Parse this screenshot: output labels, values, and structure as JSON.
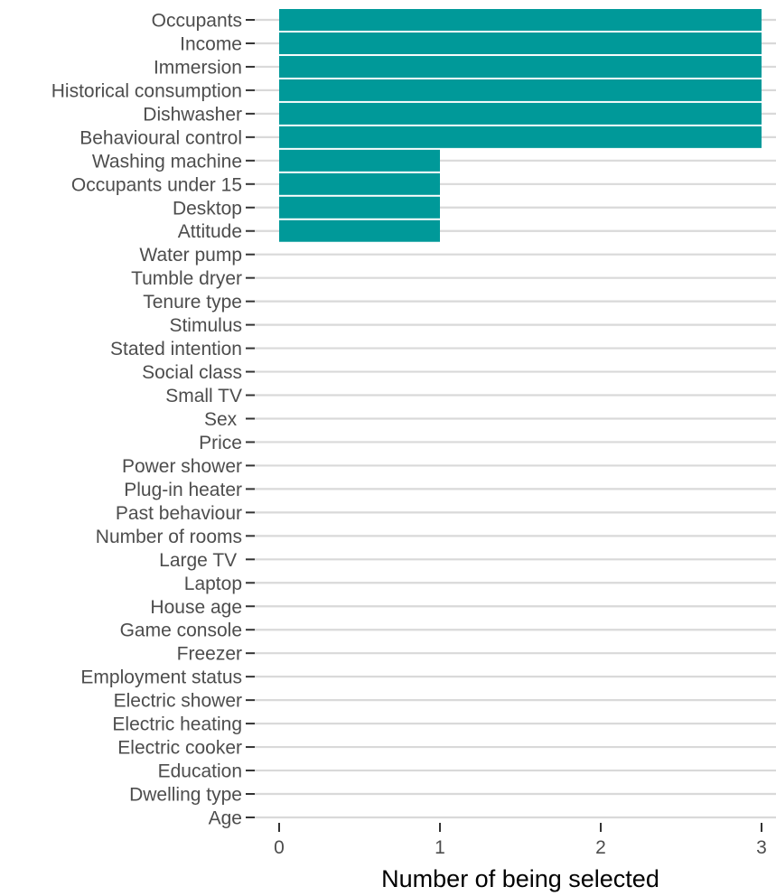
{
  "chart_data": {
    "type": "bar",
    "orientation": "horizontal",
    "categories": [
      "Occupants",
      "Income",
      "Immersion",
      "Historical consumption",
      "Dishwasher",
      "Behavioural control",
      "Washing machine",
      "Occupants under 15",
      "Desktop",
      "Attitude",
      "Water pump",
      "Tumble dryer",
      "Tenure type",
      "Stimulus",
      "Stated intention",
      "Social class",
      "Small TV",
      "Sex ",
      "Price",
      "Power shower",
      "Plug-in heater",
      "Past behaviour",
      "Number of rooms",
      "Large TV ",
      "Laptop",
      "House age",
      "Game console",
      "Freezer",
      "Employment status",
      "Electric shower",
      "Electric heating",
      "Electric cooker",
      "Education",
      "Dwelling type",
      "Age"
    ],
    "values": [
      3,
      3,
      3,
      3,
      3,
      3,
      1,
      1,
      1,
      1,
      0,
      0,
      0,
      0,
      0,
      0,
      0,
      0,
      0,
      0,
      0,
      0,
      0,
      0,
      0,
      0,
      0,
      0,
      0,
      0,
      0,
      0,
      0,
      0,
      0
    ],
    "title": "",
    "xlabel": "Number of being selected",
    "ylabel": "",
    "xlim": [
      0,
      3
    ],
    "xticks": [
      0,
      1,
      2,
      3
    ],
    "grid": "horizontal major lines",
    "bar_color": "#009999",
    "grid_color": "#d9d9d9",
    "legend": "none"
  }
}
